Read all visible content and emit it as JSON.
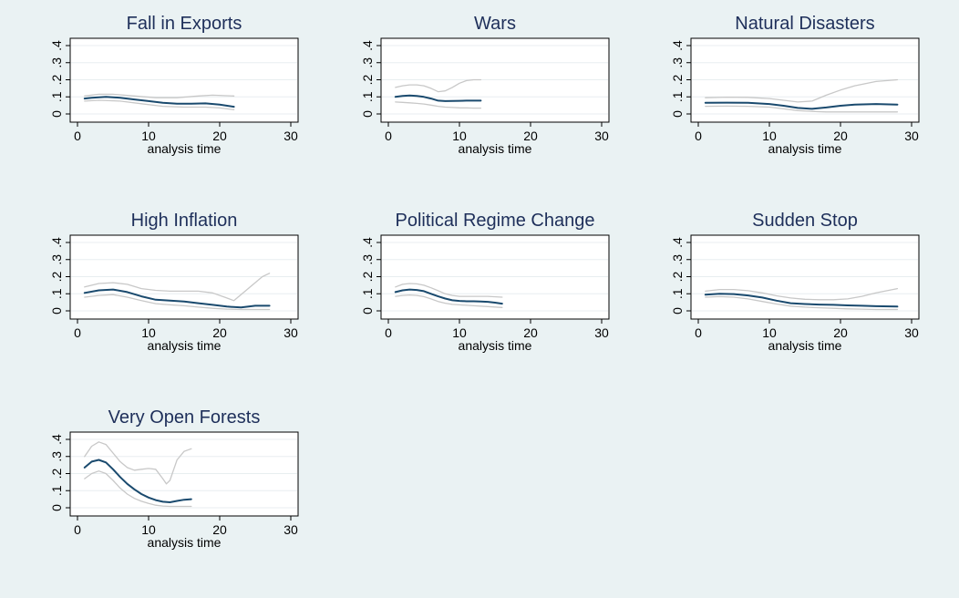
{
  "colors": {
    "background": "#eaf2f3",
    "plot_area": "#ffffff",
    "estimate": "#1a4a6e",
    "ci": "#c8c8c8",
    "grid": "#e8eef0",
    "title": "#1e2f5a"
  },
  "chart_data": [
    {
      "type": "line",
      "title": "Fall in Exports",
      "xlabel": "analysis time",
      "xlim": [
        0,
        30
      ],
      "ylim": [
        0,
        0.4
      ],
      "xticks": [
        "0",
        "10",
        "20",
        "30"
      ],
      "yticks": [
        "0",
        ".1",
        ".2",
        ".3",
        ".4"
      ],
      "grid": true,
      "series": [
        {
          "role": "estimate",
          "x": [
            1,
            2,
            4,
            6,
            8,
            10,
            12,
            14,
            16,
            18,
            20,
            22
          ],
          "y": [
            0.09,
            0.095,
            0.1,
            0.095,
            0.085,
            0.075,
            0.065,
            0.06,
            0.06,
            0.062,
            0.055,
            0.042
          ]
        },
        {
          "role": "upper",
          "x": [
            1,
            3,
            5,
            8,
            11,
            14,
            17,
            19,
            22
          ],
          "y": [
            0.105,
            0.115,
            0.115,
            0.105,
            0.095,
            0.095,
            0.105,
            0.11,
            0.105
          ]
        },
        {
          "role": "lower",
          "x": [
            1,
            3,
            6,
            9,
            12,
            15,
            18,
            20,
            22
          ],
          "y": [
            0.075,
            0.08,
            0.075,
            0.06,
            0.045,
            0.04,
            0.04,
            0.035,
            0.025
          ]
        }
      ]
    },
    {
      "type": "line",
      "title": "Wars",
      "xlabel": "analysis time",
      "xlim": [
        0,
        30
      ],
      "ylim": [
        0,
        0.4
      ],
      "xticks": [
        "0",
        "10",
        "20",
        "30"
      ],
      "yticks": [
        "0",
        ".1",
        ".2",
        ".3",
        ".4"
      ],
      "grid": true,
      "series": [
        {
          "role": "estimate",
          "x": [
            1,
            2,
            3,
            4,
            5,
            6,
            7,
            8,
            9,
            10,
            11,
            12,
            13
          ],
          "y": [
            0.1,
            0.105,
            0.108,
            0.105,
            0.1,
            0.09,
            0.078,
            0.075,
            0.076,
            0.077,
            0.078,
            0.078,
            0.078
          ]
        },
        {
          "role": "upper",
          "x": [
            1,
            2,
            3,
            4,
            5,
            6,
            7,
            8,
            9,
            10,
            11,
            12,
            13
          ],
          "y": [
            0.155,
            0.165,
            0.17,
            0.17,
            0.165,
            0.15,
            0.13,
            0.135,
            0.155,
            0.18,
            0.195,
            0.2,
            0.2
          ]
        },
        {
          "role": "lower",
          "x": [
            1,
            2,
            3,
            4,
            5,
            6,
            7,
            8,
            9,
            10,
            11,
            12,
            13
          ],
          "y": [
            0.07,
            0.068,
            0.065,
            0.062,
            0.058,
            0.052,
            0.045,
            0.04,
            0.038,
            0.036,
            0.035,
            0.034,
            0.034
          ]
        }
      ]
    },
    {
      "type": "line",
      "title": "Natural Disasters",
      "xlabel": "analysis time",
      "xlim": [
        0,
        30
      ],
      "ylim": [
        0,
        0.4
      ],
      "xticks": [
        "0",
        "10",
        "20",
        "30"
      ],
      "yticks": [
        "0",
        ".1",
        ".2",
        ".3",
        ".4"
      ],
      "grid": true,
      "series": [
        {
          "role": "estimate",
          "x": [
            1,
            4,
            7,
            10,
            12,
            14,
            16,
            18,
            20,
            22,
            25,
            28
          ],
          "y": [
            0.065,
            0.066,
            0.065,
            0.058,
            0.048,
            0.035,
            0.03,
            0.038,
            0.048,
            0.055,
            0.058,
            0.055
          ]
        },
        {
          "role": "upper",
          "x": [
            1,
            4,
            7,
            10,
            12,
            14,
            16,
            18,
            20,
            22,
            25,
            28
          ],
          "y": [
            0.095,
            0.098,
            0.097,
            0.09,
            0.08,
            0.07,
            0.075,
            0.11,
            0.14,
            0.165,
            0.19,
            0.2
          ]
        },
        {
          "role": "lower",
          "x": [
            1,
            4,
            7,
            10,
            12,
            14,
            16,
            18,
            20,
            22,
            25,
            28
          ],
          "y": [
            0.045,
            0.046,
            0.045,
            0.04,
            0.03,
            0.02,
            0.015,
            0.012,
            0.012,
            0.012,
            0.012,
            0.012
          ]
        }
      ]
    },
    {
      "type": "line",
      "title": "High Inflation",
      "xlabel": "analysis time",
      "xlim": [
        0,
        30
      ],
      "ylim": [
        0,
        0.4
      ],
      "xticks": [
        "0",
        "10",
        "20",
        "30"
      ],
      "yticks": [
        "0",
        ".1",
        ".2",
        ".3",
        ".4"
      ],
      "grid": true,
      "series": [
        {
          "role": "estimate",
          "x": [
            1,
            3,
            5,
            7,
            9,
            11,
            13,
            15,
            17,
            19,
            21,
            23,
            25,
            27
          ],
          "y": [
            0.105,
            0.12,
            0.125,
            0.11,
            0.085,
            0.065,
            0.06,
            0.055,
            0.045,
            0.035,
            0.025,
            0.02,
            0.03,
            0.03
          ]
        },
        {
          "role": "upper",
          "x": [
            1,
            3,
            5,
            7,
            9,
            11,
            13,
            15,
            17,
            19,
            21,
            22,
            24,
            26,
            27
          ],
          "y": [
            0.14,
            0.16,
            0.165,
            0.155,
            0.13,
            0.12,
            0.115,
            0.115,
            0.115,
            0.105,
            0.075,
            0.06,
            0.13,
            0.2,
            0.22
          ]
        },
        {
          "role": "lower",
          "x": [
            1,
            3,
            5,
            7,
            9,
            11,
            13,
            15,
            17,
            19,
            21,
            23,
            25,
            27
          ],
          "y": [
            0.08,
            0.09,
            0.095,
            0.08,
            0.06,
            0.042,
            0.035,
            0.03,
            0.022,
            0.015,
            0.01,
            0.008,
            0.008,
            0.008
          ]
        }
      ]
    },
    {
      "type": "line",
      "title": "Political Regime Change",
      "xlabel": "analysis time",
      "xlim": [
        0,
        30
      ],
      "ylim": [
        0,
        0.4
      ],
      "xticks": [
        "0",
        "10",
        "20",
        "30"
      ],
      "yticks": [
        "0",
        ".1",
        ".2",
        ".3",
        ".4"
      ],
      "grid": true,
      "series": [
        {
          "role": "estimate",
          "x": [
            1,
            2,
            3,
            4,
            5,
            6,
            7,
            8,
            9,
            10,
            11,
            12,
            13,
            14,
            15,
            16
          ],
          "y": [
            0.11,
            0.12,
            0.125,
            0.122,
            0.115,
            0.1,
            0.085,
            0.072,
            0.062,
            0.058,
            0.056,
            0.056,
            0.055,
            0.053,
            0.048,
            0.042
          ]
        },
        {
          "role": "upper",
          "x": [
            1,
            2,
            3,
            4,
            5,
            6,
            7,
            8,
            9,
            10,
            12,
            14,
            16
          ],
          "y": [
            0.14,
            0.155,
            0.16,
            0.158,
            0.15,
            0.135,
            0.118,
            0.1,
            0.09,
            0.085,
            0.085,
            0.085,
            0.08
          ]
        },
        {
          "role": "lower",
          "x": [
            1,
            2,
            3,
            4,
            5,
            6,
            7,
            8,
            9,
            10,
            12,
            14,
            16
          ],
          "y": [
            0.085,
            0.09,
            0.093,
            0.09,
            0.083,
            0.07,
            0.055,
            0.045,
            0.038,
            0.035,
            0.03,
            0.025,
            0.02
          ]
        }
      ]
    },
    {
      "type": "line",
      "title": "Sudden Stop",
      "xlabel": "analysis time",
      "xlim": [
        0,
        30
      ],
      "ylim": [
        0,
        0.4
      ],
      "xticks": [
        "0",
        "10",
        "20",
        "30"
      ],
      "yticks": [
        "0",
        ".1",
        ".2",
        ".3",
        ".4"
      ],
      "grid": true,
      "series": [
        {
          "role": "estimate",
          "x": [
            1,
            3,
            5,
            7,
            9,
            11,
            13,
            15,
            17,
            19,
            21,
            23,
            25,
            28
          ],
          "y": [
            0.095,
            0.1,
            0.098,
            0.09,
            0.078,
            0.06,
            0.045,
            0.04,
            0.037,
            0.035,
            0.032,
            0.03,
            0.027,
            0.025
          ]
        },
        {
          "role": "upper",
          "x": [
            1,
            3,
            5,
            7,
            9,
            11,
            13,
            15,
            17,
            19,
            21,
            23,
            25,
            28
          ],
          "y": [
            0.115,
            0.125,
            0.125,
            0.118,
            0.105,
            0.088,
            0.075,
            0.068,
            0.065,
            0.065,
            0.07,
            0.085,
            0.105,
            0.13
          ]
        },
        {
          "role": "lower",
          "x": [
            1,
            3,
            5,
            7,
            9,
            11,
            13,
            15,
            17,
            19,
            21,
            23,
            25,
            28
          ],
          "y": [
            0.08,
            0.083,
            0.08,
            0.07,
            0.055,
            0.04,
            0.028,
            0.022,
            0.018,
            0.015,
            0.012,
            0.01,
            0.008,
            0.008
          ]
        }
      ]
    },
    {
      "type": "line",
      "title": "Very Open Forests",
      "xlabel": "analysis time",
      "xlim": [
        0,
        30
      ],
      "ylim": [
        0,
        0.4
      ],
      "xticks": [
        "0",
        "10",
        "20",
        "30"
      ],
      "yticks": [
        "0",
        ".1",
        ".2",
        ".3",
        ".4"
      ],
      "grid": true,
      "series": [
        {
          "role": "estimate",
          "x": [
            1,
            2,
            3,
            4,
            5,
            6,
            7,
            8,
            9,
            10,
            11,
            12,
            13,
            14,
            15,
            16
          ],
          "y": [
            0.235,
            0.27,
            0.28,
            0.265,
            0.225,
            0.18,
            0.14,
            0.108,
            0.08,
            0.06,
            0.045,
            0.035,
            0.032,
            0.04,
            0.047,
            0.05
          ]
        },
        {
          "role": "upper",
          "x": [
            1,
            2,
            3,
            4,
            5,
            6,
            7,
            8,
            9,
            10,
            11,
            12,
            12.5,
            13,
            14,
            15,
            16
          ],
          "y": [
            0.3,
            0.36,
            0.385,
            0.37,
            0.32,
            0.27,
            0.235,
            0.22,
            0.225,
            0.23,
            0.225,
            0.17,
            0.14,
            0.16,
            0.28,
            0.33,
            0.345
          ]
        },
        {
          "role": "lower",
          "x": [
            1,
            2,
            3,
            4,
            5,
            6,
            7,
            8,
            9,
            10,
            11,
            12,
            13,
            14,
            15,
            16
          ],
          "y": [
            0.17,
            0.2,
            0.215,
            0.2,
            0.16,
            0.115,
            0.08,
            0.055,
            0.038,
            0.025,
            0.015,
            0.01,
            0.008,
            0.008,
            0.008,
            0.008
          ]
        }
      ]
    }
  ]
}
